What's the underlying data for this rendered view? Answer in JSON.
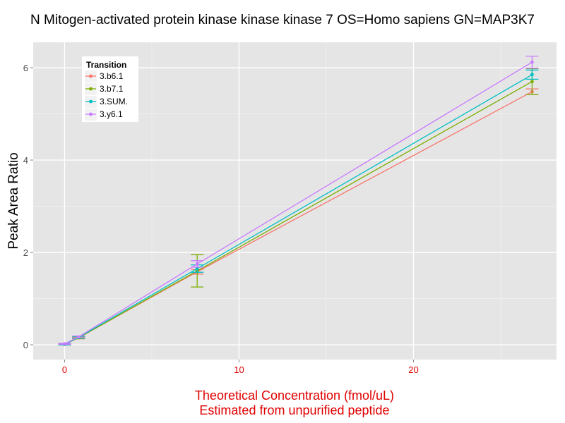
{
  "chart_data": {
    "type": "line",
    "title": "N Mitogen-activated protein kinase kinase kinase 7 OS=Homo sapiens GN=MAP3K7",
    "xlabel_line1": "Theoretical Concentration (fmol/uL)",
    "xlabel_line2": "Estimated from unpurified peptide",
    "ylabel": "Peak Area Ratio",
    "xlim": [
      -1.8,
      28.2
    ],
    "ylim": [
      -0.32,
      6.55
    ],
    "x_ticks": [
      0,
      10,
      20
    ],
    "x_tick_labels": [
      "0",
      "10",
      "20"
    ],
    "y_ticks": [
      0,
      2,
      4,
      6
    ],
    "y_tick_labels": [
      "0",
      "2",
      "4",
      "6"
    ],
    "grid": true,
    "legend": {
      "title": "Transition",
      "position": "top-left"
    },
    "series": [
      {
        "name": "3.b6.1",
        "color": "#F8766D",
        "x": [
          0,
          0.8,
          7.6,
          26.8
        ],
        "y": [
          0.01,
          0.15,
          1.58,
          5.48
        ],
        "err": [
          0.01,
          0.02,
          0.05,
          0.06
        ]
      },
      {
        "name": "3.b7.1",
        "color": "#7CAE00",
        "x": [
          0,
          0.8,
          7.6,
          26.8
        ],
        "y": [
          0.01,
          0.15,
          1.6,
          5.7
        ],
        "err": [
          0.01,
          0.02,
          0.35,
          0.28
        ]
      },
      {
        "name": "3.SUM.",
        "color": "#00BFC4",
        "x": [
          0,
          0.8,
          7.6,
          26.8
        ],
        "y": [
          0.01,
          0.16,
          1.65,
          5.85
        ],
        "err": [
          0.01,
          0.02,
          0.08,
          0.1
        ]
      },
      {
        "name": "3.y6.1",
        "color": "#C77CFF",
        "x": [
          0,
          0.8,
          7.6,
          26.8
        ],
        "y": [
          0.02,
          0.17,
          1.75,
          6.12
        ],
        "err": [
          0.01,
          0.02,
          0.07,
          0.13
        ]
      }
    ]
  }
}
